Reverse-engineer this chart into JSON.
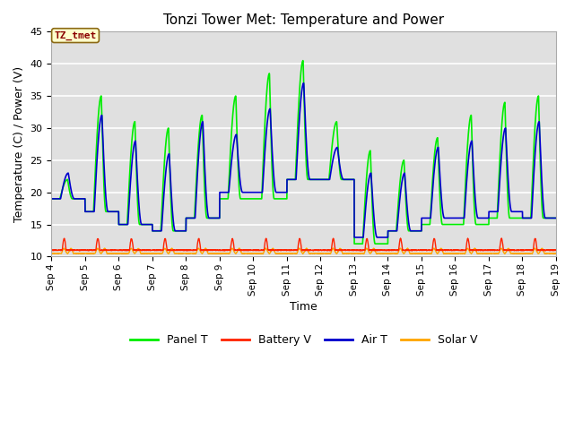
{
  "title": "Tonzi Tower Met: Temperature and Power",
  "xlabel": "Time",
  "ylabel": "Temperature (C) / Power (V)",
  "ylim": [
    10,
    45
  ],
  "yticks": [
    10,
    15,
    20,
    25,
    30,
    35,
    40,
    45
  ],
  "annotation_text": "TZ_tmet",
  "annotation_color": "#8B0000",
  "annotation_bg": "#FFFFCC",
  "bg_color": "#E0E0E0",
  "grid_color": "white",
  "colors": {
    "panel_t": "#00EE00",
    "battery_v": "#FF2200",
    "air_t": "#0000CC",
    "solar_v": "#FFA500"
  },
  "legend_labels": [
    "Panel T",
    "Battery V",
    "Air T",
    "Solar V"
  ],
  "x_start": 4,
  "x_end": 19,
  "x_ticks": [
    4,
    5,
    6,
    7,
    8,
    9,
    10,
    11,
    12,
    13,
    14,
    15,
    16,
    17,
    18,
    19
  ],
  "x_tick_labels": [
    "Sep 4",
    "Sep 5",
    "Sep 6",
    "Sep 7",
    "Sep 8",
    "Sep 9",
    "Sep 10",
    "Sep 11",
    "Sep 12",
    "Sep 13",
    "Sep 14",
    "Sep 15",
    "Sep 16",
    "Sep 17",
    "Sep 18",
    "Sep 19"
  ],
  "panel_t_peaks": [
    22,
    35,
    31,
    30,
    32,
    35,
    38.5,
    40.5,
    31,
    26.5,
    25,
    28.5,
    32,
    34,
    35
  ],
  "air_t_peaks": [
    23,
    32,
    28,
    26,
    31,
    29,
    33,
    37,
    27,
    23,
    23,
    27,
    28,
    30,
    31
  ],
  "air_t_troughs": [
    19,
    17,
    15,
    14,
    16,
    20,
    20,
    22,
    22,
    13,
    14,
    16,
    16,
    17,
    16
  ],
  "panel_t_troughs": [
    19,
    17,
    15,
    14,
    16,
    19,
    19,
    22,
    22,
    12,
    14,
    15,
    15,
    16,
    16
  ]
}
